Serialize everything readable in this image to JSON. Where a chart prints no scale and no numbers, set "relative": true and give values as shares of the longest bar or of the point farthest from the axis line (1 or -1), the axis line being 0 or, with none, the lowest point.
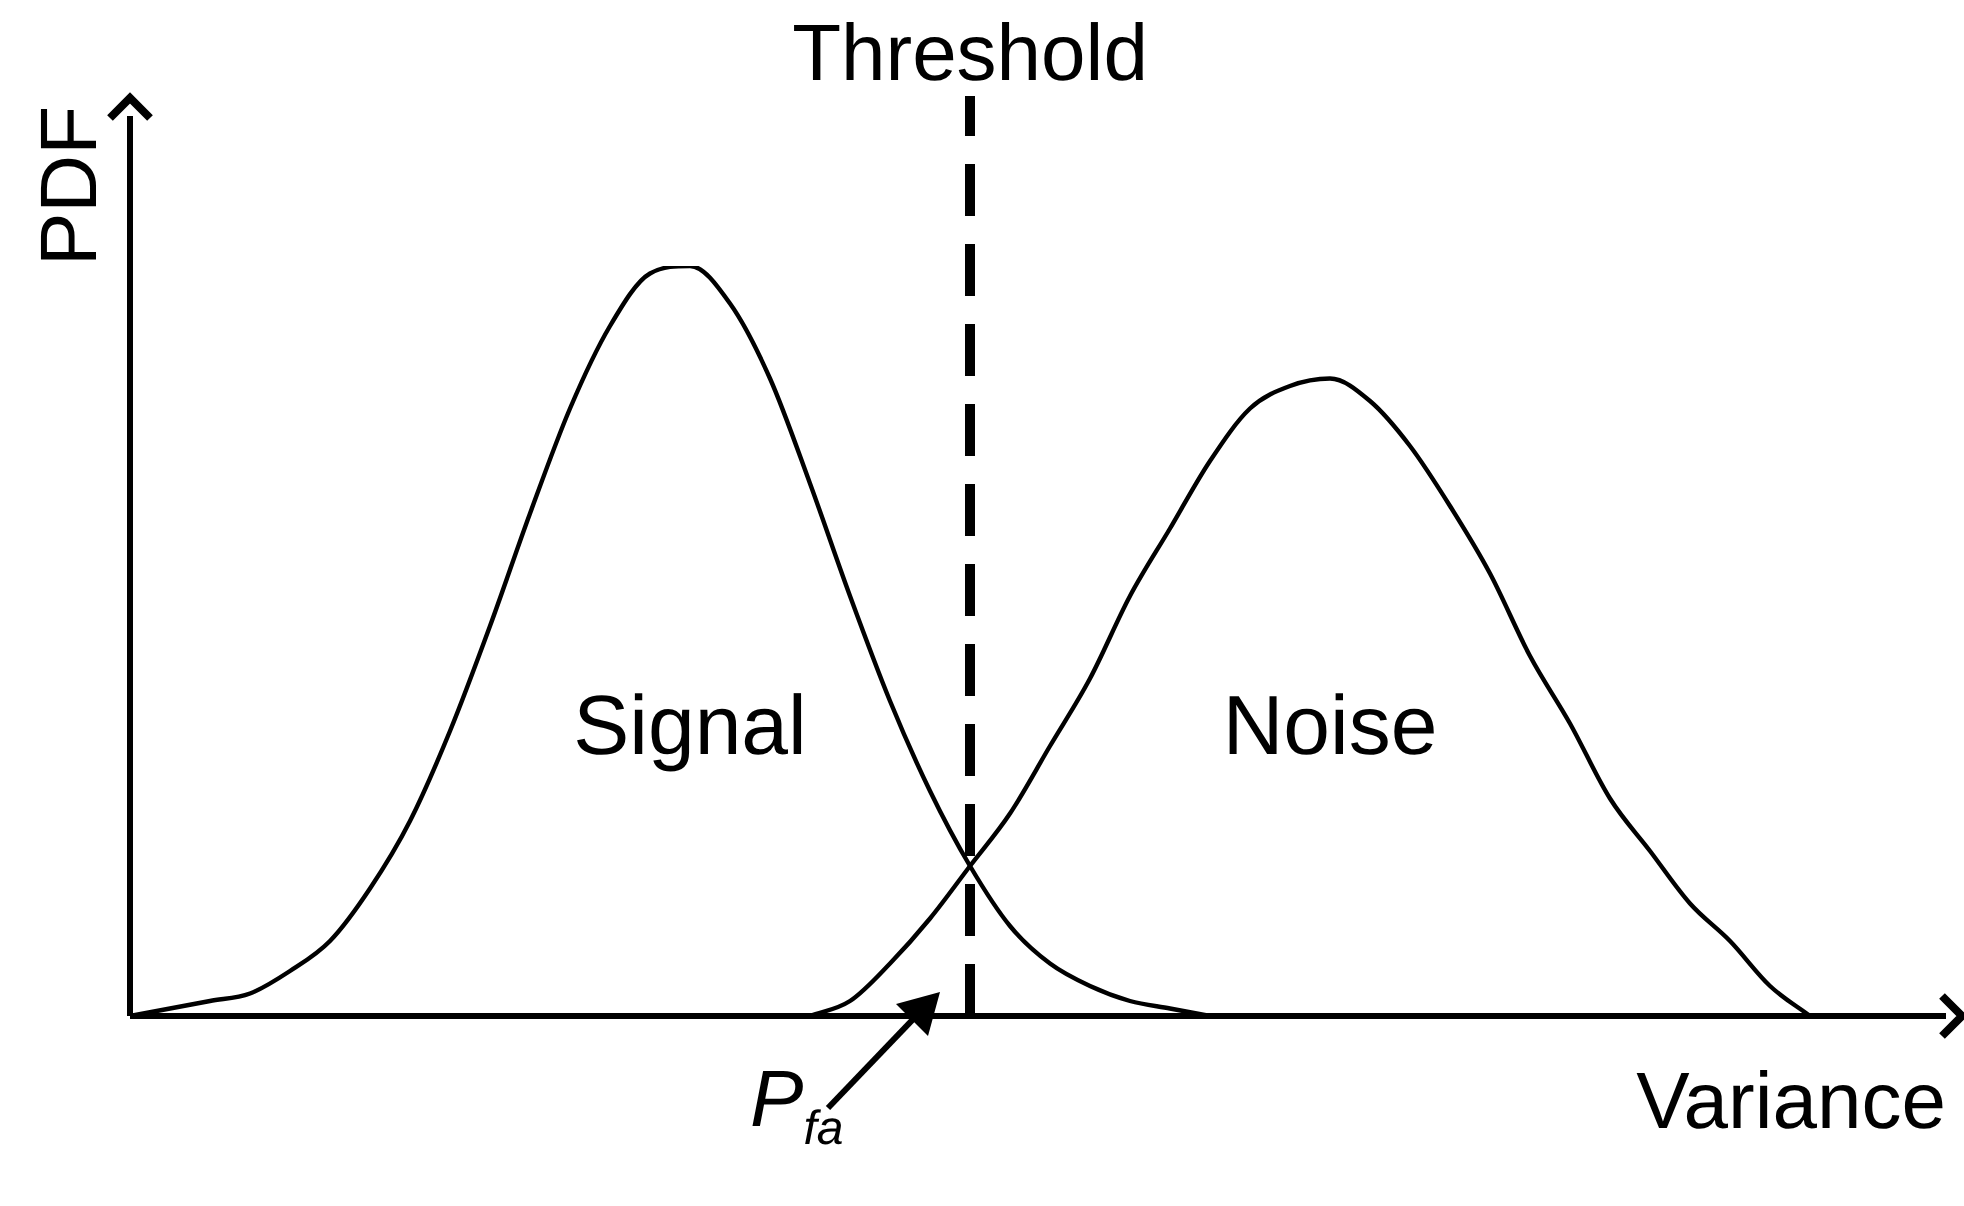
{
  "chart_data": {
    "type": "line",
    "relative": true,
    "xlabel": "Variance",
    "ylabel": "PDF",
    "legend": false,
    "marker": "none",
    "line_style": "solid",
    "categories": [
      null,
      null,
      null,
      null,
      null,
      null,
      null,
      null,
      null,
      null,
      null,
      null,
      null,
      null,
      null,
      null,
      null,
      null,
      null,
      null,
      null,
      null,
      null,
      null,
      null,
      null,
      null,
      null,
      null,
      null,
      null,
      null,
      null,
      null,
      null,
      null,
      null,
      null,
      null,
      null,
      null,
      null,
      null,
      null,
      null,
      null
    ],
    "series": [
      {
        "name": "Signal",
        "color": "#000000",
        "values": [
          0,
          0.01,
          0.02,
          0.03,
          0.06,
          0.1,
          0.17,
          0.26,
          0.38,
          0.52,
          0.67,
          0.81,
          0.92,
          0.99,
          1,
          0.95,
          0.85,
          0.71,
          0.56,
          0.42,
          0.3,
          0.2,
          0.12,
          0.07,
          0.04,
          0.02,
          0.01,
          0,
          null,
          null,
          null,
          null,
          null,
          null,
          null,
          null,
          null,
          null,
          null,
          null,
          null,
          null,
          null,
          null,
          null,
          null
        ]
      },
      {
        "name": "Noise",
        "color": "#000000",
        "values": [
          null,
          null,
          null,
          null,
          null,
          null,
          null,
          null,
          null,
          null,
          null,
          null,
          null,
          null,
          null,
          null,
          null,
          0,
          0.02,
          0.07,
          0.13,
          0.2,
          0.27,
          0.36,
          0.45,
          0.56,
          0.65,
          0.74,
          0.81,
          0.84,
          0.85,
          0.82,
          0.76,
          0.68,
          0.59,
          0.48,
          0.39,
          0.29,
          0.22,
          0.15,
          0.1,
          0.04,
          0,
          null,
          null,
          null
        ]
      }
    ],
    "annotations": [
      "Threshold",
      "P$_{fa}$"
    ]
  }
}
